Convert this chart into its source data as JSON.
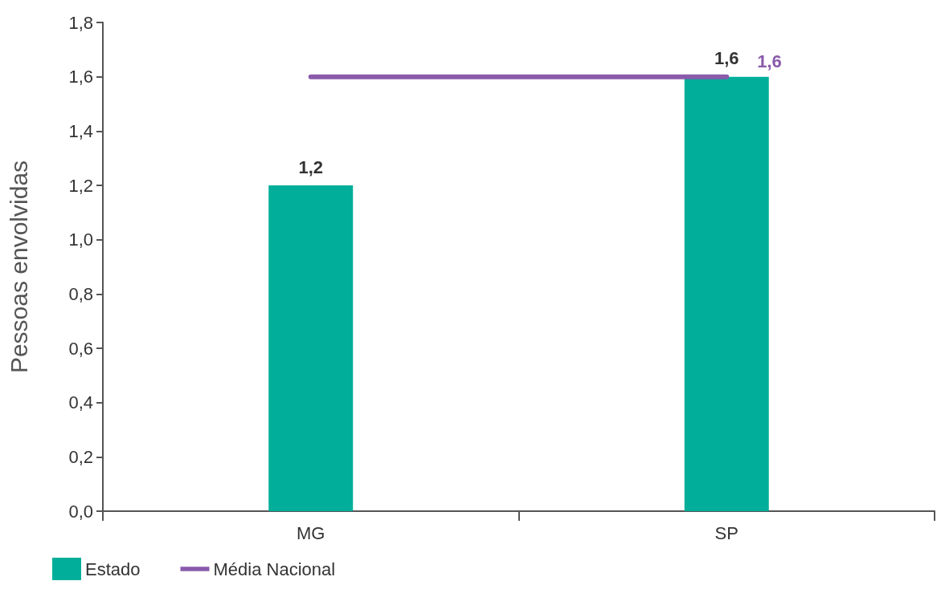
{
  "chart_data": {
    "type": "bar",
    "ylabel": "Pessoas envolvidas",
    "categories": [
      "MG",
      "SP"
    ],
    "series": [
      {
        "name": "Estado",
        "type": "bar",
        "color": "#00ae9a",
        "values": [
          1.2,
          1.6
        ],
        "value_labels": [
          "1,2",
          "1,6"
        ]
      },
      {
        "name": "Média Nacional",
        "type": "line",
        "color": "#8a5aab",
        "values": [
          1.6,
          1.6
        ],
        "value_labels": [
          null,
          "1,6"
        ]
      }
    ],
    "ylim": [
      0,
      1.8
    ],
    "yticks": [
      {
        "value": 0,
        "label": "0,0"
      },
      {
        "value": 0.2,
        "label": "0,2"
      },
      {
        "value": 0.4,
        "label": "0,4"
      },
      {
        "value": 0.6,
        "label": "0,6"
      },
      {
        "value": 0.8,
        "label": "0,8"
      },
      {
        "value": 1.0,
        "label": "1,0"
      },
      {
        "value": 1.2,
        "label": "1,2"
      },
      {
        "value": 1.4,
        "label": "1,4"
      },
      {
        "value": 1.6,
        "label": "1,6"
      },
      {
        "value": 1.8,
        "label": "1,8"
      }
    ],
    "grid": false,
    "legend": "bottom left"
  }
}
